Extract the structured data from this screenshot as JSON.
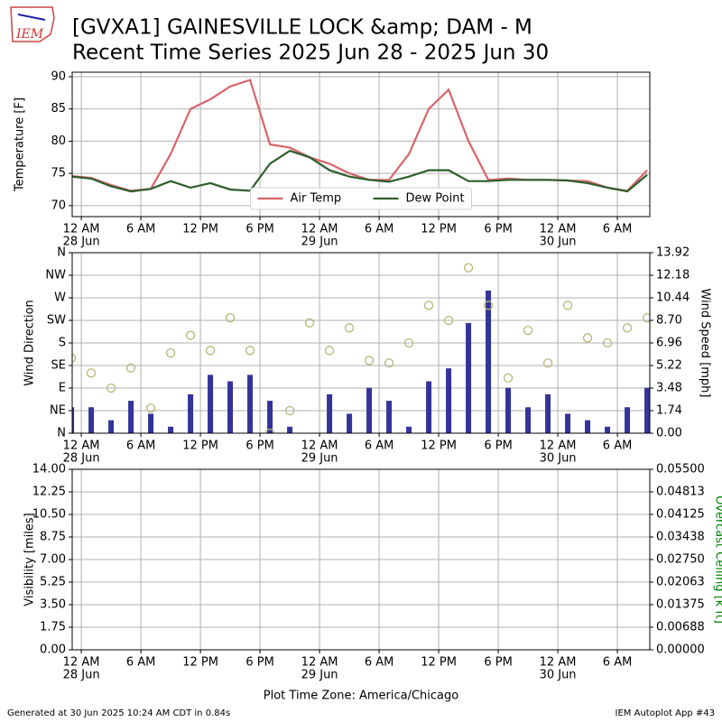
{
  "header": {
    "logo": "IEM",
    "title": [
      "[GVXA1] GAINESVILLE LOCK &amp; DAM - M",
      "Recent Time Series 2025 Jun 28 - 2025 Jun 30"
    ],
    "footer_left": "Generated at 30 Jun 2025 10:24 AM CDT in 0.84s",
    "footer_right": "IEM Autoplot App #43"
  },
  "chart_data": [
    {
      "type": "line",
      "ylabel": "Temperature [F]",
      "legend": "lower center",
      "grid": true,
      "x": [
        "2025-06-27T23:00",
        "2025-06-28T01:00",
        "2025-06-28T03:00",
        "2025-06-28T05:00",
        "2025-06-28T07:00",
        "2025-06-28T09:00",
        "2025-06-28T11:00",
        "2025-06-28T13:00",
        "2025-06-28T15:00",
        "2025-06-28T17:00",
        "2025-06-28T19:00",
        "2025-06-28T21:00",
        "2025-06-28T23:00",
        "2025-06-29T01:00",
        "2025-06-29T03:00",
        "2025-06-29T05:00",
        "2025-06-29T07:00",
        "2025-06-29T09:00",
        "2025-06-29T11:00",
        "2025-06-29T13:00",
        "2025-06-29T15:00",
        "2025-06-29T17:00",
        "2025-06-29T19:00",
        "2025-06-29T21:00",
        "2025-06-29T23:00",
        "2025-06-30T01:00",
        "2025-06-30T03:00",
        "2025-06-30T05:00",
        "2025-06-30T07:00",
        "2025-06-30T09:00"
      ],
      "series": [
        {
          "name": "Air Temp",
          "color": "#d9646a",
          "values": [
            74.6,
            74.3,
            73.2,
            72.3,
            72.6,
            78,
            85,
            86.5,
            88.5,
            89.5,
            79.5,
            79,
            77.5,
            76.5,
            75,
            74,
            74,
            78,
            85,
            88,
            80,
            74,
            74.2,
            74,
            74,
            73.9,
            73.8,
            72.8,
            72.3,
            75.5
          ]
        },
        {
          "name": "Dew Point",
          "color": "#2e5e2e",
          "values": [
            74.5,
            74.2,
            73,
            72.2,
            72.6,
            73.8,
            72.8,
            73.5,
            72.5,
            72.3,
            76.5,
            78.5,
            77.5,
            75.5,
            74.5,
            74,
            73.7,
            74.5,
            75.5,
            75.5,
            73.8,
            73.8,
            74,
            74,
            74,
            73.9,
            73.5,
            72.8,
            72.2,
            74.8
          ]
        }
      ],
      "xlim": [
        "2025-06-27T23:05",
        "2025-06-30T09:16"
      ],
      "xticks": [
        {
          "value": "2025-06-28T00:00",
          "label": [
            "12 AM",
            "28 Jun"
          ]
        },
        {
          "value": "2025-06-28T06:00",
          "label": [
            "6 AM"
          ]
        },
        {
          "value": "2025-06-28T12:00",
          "label": [
            "12 PM"
          ]
        },
        {
          "value": "2025-06-28T18:00",
          "label": [
            "6 PM"
          ]
        },
        {
          "value": "2025-06-29T00:00",
          "label": [
            "12 AM",
            "29 Jun"
          ]
        },
        {
          "value": "2025-06-29T06:00",
          "label": [
            "6 AM"
          ]
        },
        {
          "value": "2025-06-29T12:00",
          "label": [
            "12 PM"
          ]
        },
        {
          "value": "2025-06-29T18:00",
          "label": [
            "6 PM"
          ]
        },
        {
          "value": "2025-06-30T00:00",
          "label": [
            "12 AM",
            "30 Jun"
          ]
        },
        {
          "value": "2025-06-30T06:00",
          "label": [
            "6 AM"
          ]
        }
      ],
      "ylim": [
        68.3,
        90.7
      ],
      "yticks": [
        70,
        75,
        80,
        85,
        90
      ]
    },
    {
      "type": "bar",
      "ylabel": "Wind Direction",
      "y2label": "Wind Speed [mph]",
      "grid": true,
      "x": [
        "2025-06-27T23:00",
        "2025-06-28T01:00",
        "2025-06-28T03:00",
        "2025-06-28T05:00",
        "2025-06-28T07:00",
        "2025-06-28T09:00",
        "2025-06-28T11:00",
        "2025-06-28T13:00",
        "2025-06-28T15:00",
        "2025-06-28T17:00",
        "2025-06-28T19:00",
        "2025-06-28T21:00",
        "2025-06-28T23:00",
        "2025-06-29T01:00",
        "2025-06-29T03:00",
        "2025-06-29T05:00",
        "2025-06-29T07:00",
        "2025-06-29T09:00",
        "2025-06-29T11:00",
        "2025-06-29T13:00",
        "2025-06-29T15:00",
        "2025-06-29T17:00",
        "2025-06-29T19:00",
        "2025-06-29T21:00",
        "2025-06-29T23:00",
        "2025-06-30T01:00",
        "2025-06-30T03:00",
        "2025-06-30T05:00",
        "2025-06-30T07:00",
        "2025-06-30T09:00"
      ],
      "series": [
        {
          "type": "bar",
          "axis": "y2",
          "color": "#333399",
          "values": [
            2,
            2,
            1,
            2.5,
            1.5,
            0.5,
            3,
            4.5,
            4,
            4.5,
            2.5,
            0.5,
            0,
            3,
            1.5,
            3.5,
            2.5,
            0.5,
            4,
            5,
            8.5,
            11,
            3.5,
            2,
            3,
            1.5,
            1,
            0.5,
            2,
            3.5
          ]
        },
        {
          "type": "scatter",
          "color": "#b5b777",
          "values": [
            150,
            120,
            90,
            130,
            50,
            160,
            195,
            165,
            230,
            165,
            0,
            45,
            220,
            165,
            210,
            145,
            140,
            180,
            255,
            225,
            330,
            255,
            110,
            205,
            140,
            255,
            190,
            180,
            210,
            230
          ]
        }
      ],
      "xlim": [
        "2025-06-27T23:05",
        "2025-06-30T09:16"
      ],
      "xticks": [
        {
          "value": "2025-06-28T00:00",
          "label": [
            "12 AM",
            "28 Jun"
          ]
        },
        {
          "value": "2025-06-28T06:00",
          "label": [
            "6 AM"
          ]
        },
        {
          "value": "2025-06-28T12:00",
          "label": [
            "12 PM"
          ]
        },
        {
          "value": "2025-06-28T18:00",
          "label": [
            "6 PM"
          ]
        },
        {
          "value": "2025-06-29T00:00",
          "label": [
            "12 AM",
            "29 Jun"
          ]
        },
        {
          "value": "2025-06-29T06:00",
          "label": [
            "6 AM"
          ]
        },
        {
          "value": "2025-06-29T12:00",
          "label": [
            "12 PM"
          ]
        },
        {
          "value": "2025-06-29T18:00",
          "label": [
            "6 PM"
          ]
        },
        {
          "value": "2025-06-30T00:00",
          "label": [
            "12 AM",
            "30 Jun"
          ]
        },
        {
          "value": "2025-06-30T06:00",
          "label": [
            "6 AM"
          ]
        }
      ],
      "ylim": [
        0,
        360
      ],
      "yticks": [
        {
          "value": 0,
          "label": "N"
        },
        {
          "value": 45,
          "label": "NE"
        },
        {
          "value": 90,
          "label": "E"
        },
        {
          "value": 135,
          "label": "SE"
        },
        {
          "value": 180,
          "label": "S"
        },
        {
          "value": 225,
          "label": "SW"
        },
        {
          "value": 270,
          "label": "W"
        },
        {
          "value": 315,
          "label": "NW"
        },
        {
          "value": 360,
          "label": "N"
        }
      ],
      "y2lim": [
        0,
        13.92
      ],
      "y2ticks": [
        {
          "value": 0,
          "label": "0.00"
        },
        1.74,
        3.48,
        5.22,
        6.96,
        {
          "value": 8.7,
          "label": "8.70"
        },
        10.44,
        12.18,
        13.92
      ]
    },
    {
      "type": "line",
      "ylabel": "Visibility [miles]",
      "y2label": "Overcast Ceiling [k ft]",
      "y2label_color": "#008000",
      "xlabel": "Plot Time Zone: America/Chicago",
      "grid": true,
      "series": [],
      "xlim": [
        "2025-06-27T23:05",
        "2025-06-30T09:16"
      ],
      "xticks": [
        {
          "value": "2025-06-28T00:00",
          "label": [
            "12 AM",
            "28 Jun"
          ]
        },
        {
          "value": "2025-06-28T06:00",
          "label": [
            "6 AM"
          ]
        },
        {
          "value": "2025-06-28T12:00",
          "label": [
            "12 PM"
          ]
        },
        {
          "value": "2025-06-28T18:00",
          "label": [
            "6 PM"
          ]
        },
        {
          "value": "2025-06-29T00:00",
          "label": [
            "12 AM",
            "29 Jun"
          ]
        },
        {
          "value": "2025-06-29T06:00",
          "label": [
            "6 AM"
          ]
        },
        {
          "value": "2025-06-29T12:00",
          "label": [
            "12 PM"
          ]
        },
        {
          "value": "2025-06-29T18:00",
          "label": [
            "6 PM"
          ]
        },
        {
          "value": "2025-06-30T00:00",
          "label": [
            "12 AM",
            "30 Jun"
          ]
        },
        {
          "value": "2025-06-30T06:00",
          "label": [
            "6 AM"
          ]
        }
      ],
      "ylim": [
        0,
        14
      ],
      "yticks": [
        {
          "value": 0,
          "label": "0.00"
        },
        1.75,
        {
          "value": 3.5,
          "label": "3.50"
        },
        5.25,
        {
          "value": 7,
          "label": "7.00"
        },
        8.75,
        {
          "value": 10.5,
          "label": "10.50"
        },
        12.25,
        {
          "value": 14,
          "label": "14.00"
        }
      ],
      "y2lim": [
        0,
        0.055
      ],
      "y2ticks": [
        {
          "value": 0,
          "label": "0.00000"
        },
        {
          "value": 0.00688,
          "label": "0.00688"
        },
        {
          "value": 0.01375,
          "label": "0.01375"
        },
        {
          "value": 0.02063,
          "label": "0.02063"
        },
        {
          "value": 0.0275,
          "label": "0.02750"
        },
        {
          "value": 0.03438,
          "label": "0.03438"
        },
        {
          "value": 0.04125,
          "label": "0.04125"
        },
        {
          "value": 0.04813,
          "label": "0.04813"
        },
        {
          "value": 0.055,
          "label": "0.05500"
        }
      ]
    }
  ]
}
